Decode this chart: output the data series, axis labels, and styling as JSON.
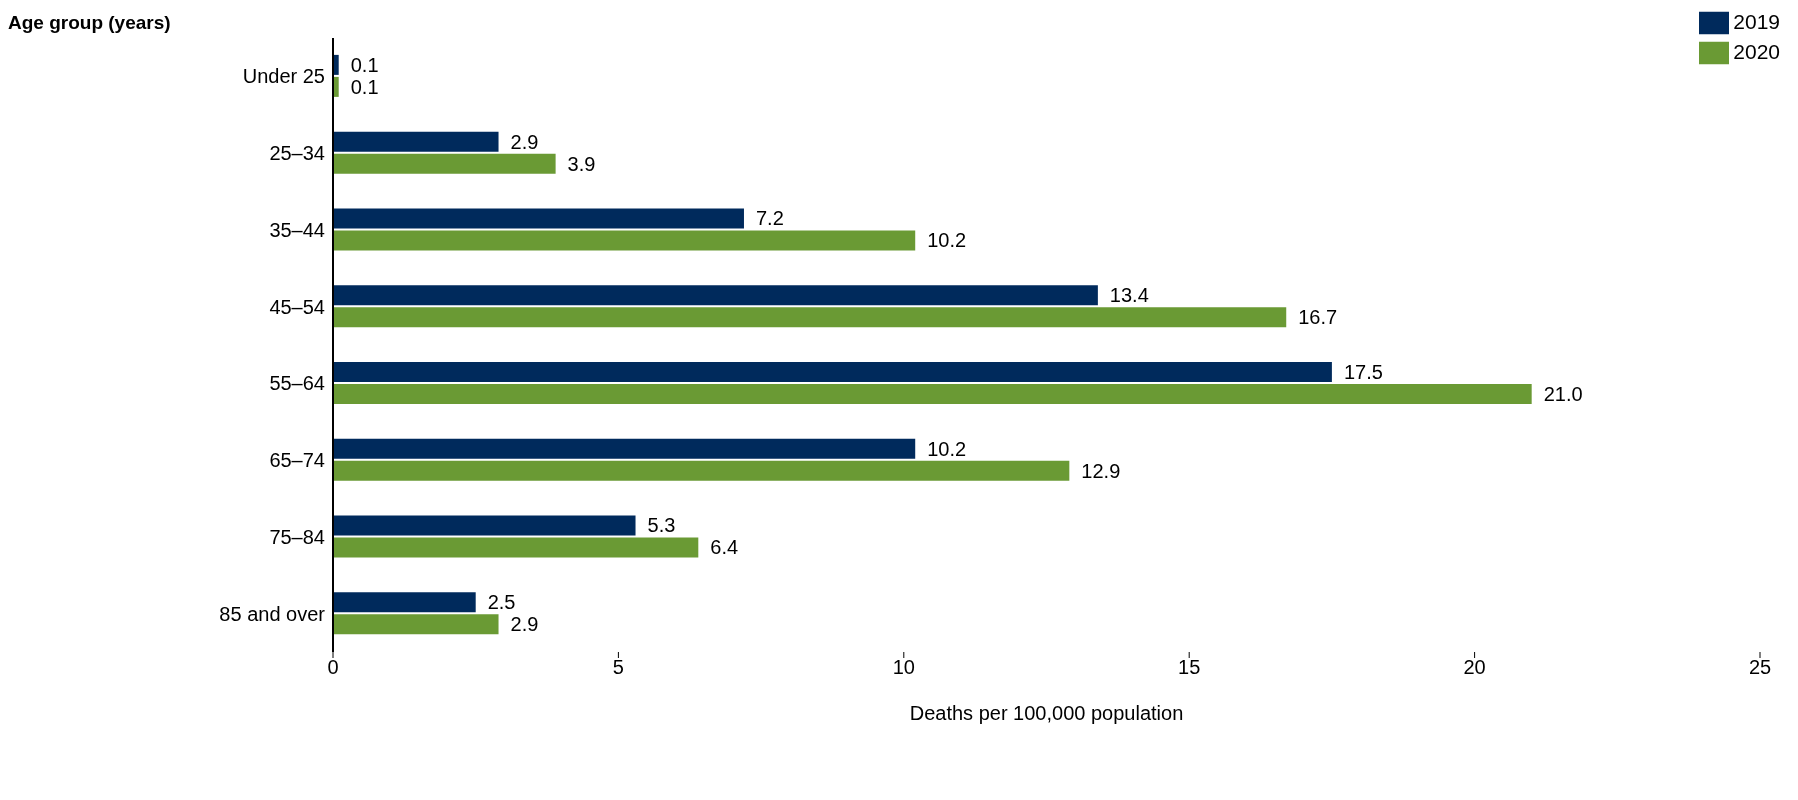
{
  "chart_data": {
    "type": "bar",
    "orientation": "horizontal",
    "ylabel": "Age group (years)",
    "xlabel": "Deaths per 100,000 population",
    "categories": [
      "Under 25",
      "25–34",
      "35–44",
      "45–54",
      "55–64",
      "65–74",
      "75–84",
      "85 and over"
    ],
    "series": [
      {
        "name": "2019",
        "color": "#002a5c",
        "values": [
          0.1,
          2.9,
          7.2,
          13.4,
          17.5,
          10.2,
          5.3,
          2.5
        ],
        "value_labels": [
          "0.1",
          "2.9",
          "7.2",
          "13.4",
          "17.5",
          "10.2",
          "5.3",
          "2.5"
        ]
      },
      {
        "name": "2020",
        "color": "#6a9a34",
        "values": [
          0.1,
          3.9,
          10.2,
          16.7,
          21.0,
          12.9,
          6.4,
          2.9
        ],
        "value_labels": [
          "0.1",
          "3.9",
          "10.2",
          "16.7",
          "21.0",
          "12.9",
          "6.4",
          "2.9"
        ]
      }
    ],
    "xlim": [
      0,
      25
    ],
    "xticks": [
      0,
      5,
      10,
      15,
      20,
      25
    ],
    "grid": false,
    "legend": "top right"
  }
}
